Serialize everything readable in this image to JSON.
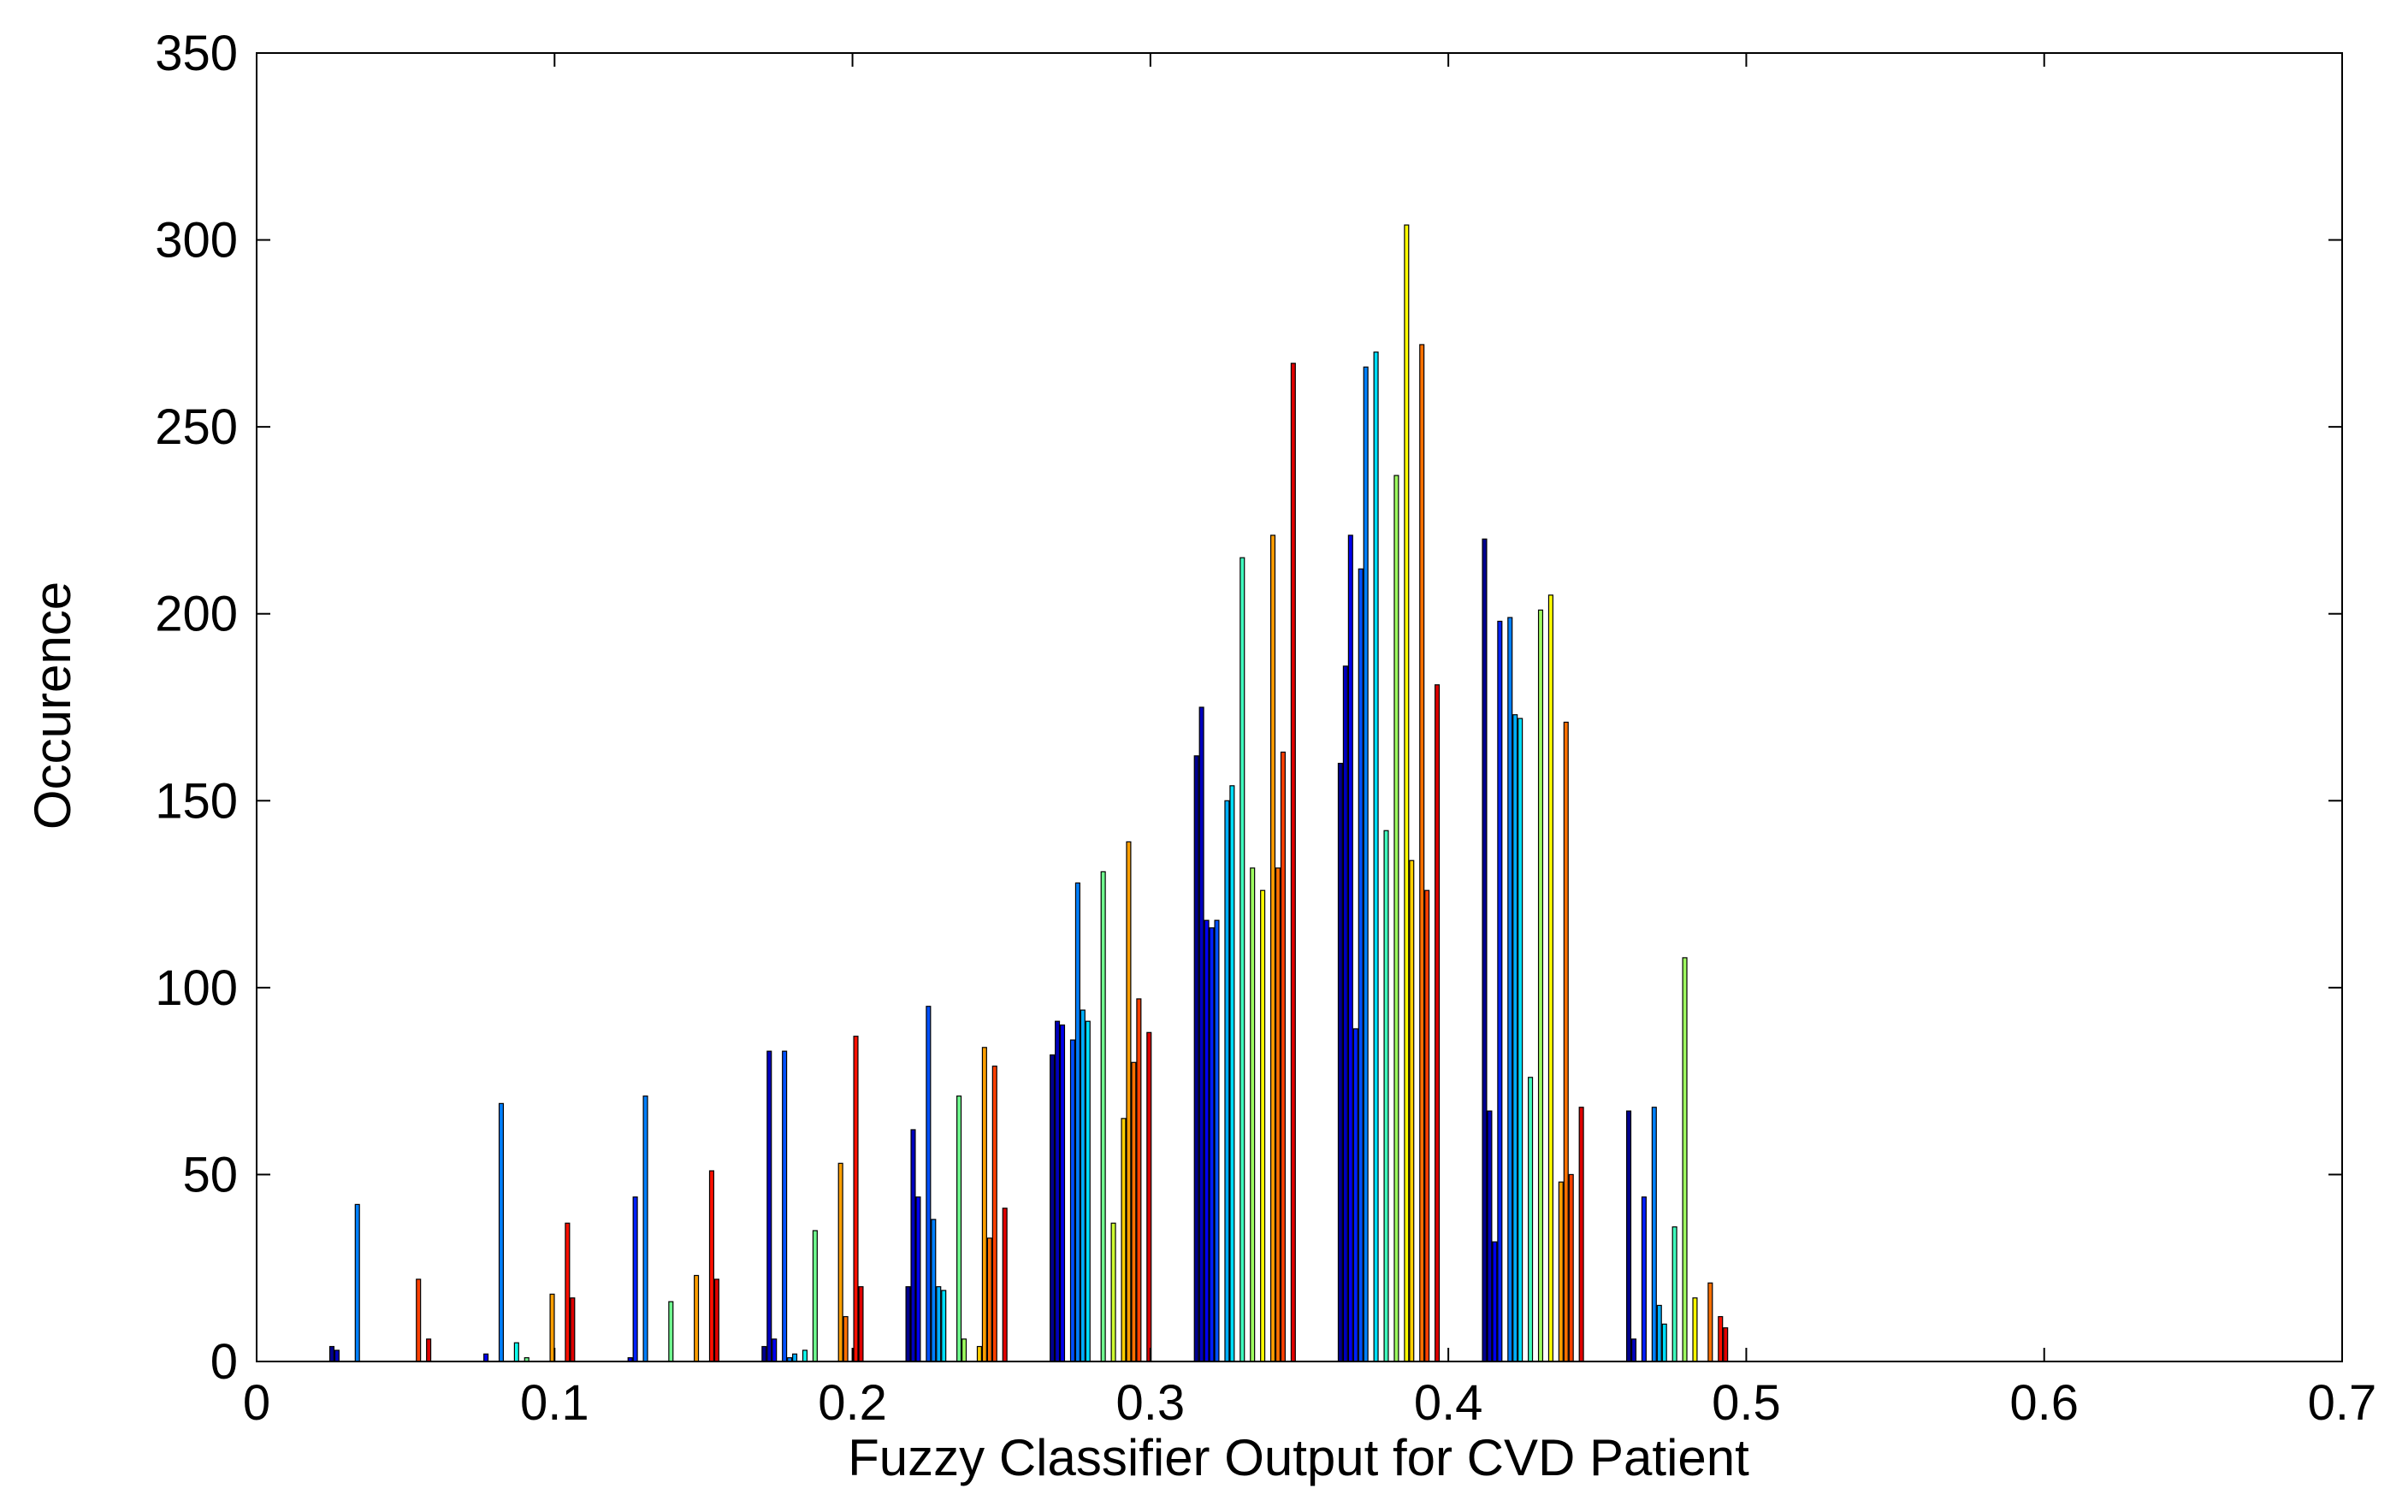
{
  "chart_data": {
    "type": "bar",
    "title": "",
    "xlabel": "Fuzzy Classifier Output for CVD Patient",
    "ylabel": "Occurence",
    "xlim": [
      0,
      0.7
    ],
    "ylim": [
      0,
      350
    ],
    "xticks": [
      0,
      0.1,
      0.2,
      0.3,
      0.4,
      0.5,
      0.6,
      0.7
    ],
    "yticks": [
      0,
      50,
      100,
      150,
      200,
      250,
      300,
      350
    ],
    "xtick_labels": [
      "0",
      "0.1",
      "0.2",
      "0.3",
      "0.4",
      "0.5",
      "0.6",
      "0.7"
    ],
    "ytick_labels": [
      "0",
      "50",
      "100",
      "150",
      "200",
      "250",
      "300",
      "350"
    ],
    "grid": false,
    "legend": "none",
    "colormap": "jet",
    "categories": [
      0.0415,
      0.0898,
      0.1382,
      0.1866,
      0.2349,
      0.2833,
      0.3317,
      0.38,
      0.4284,
      0.4768
    ],
    "series": [
      {
        "color": "#00008f",
        "values": [
          4,
          0,
          0,
          4,
          20,
          82,
          162,
          160,
          220,
          67
        ]
      },
      {
        "color": "#0000bf",
        "values": [
          3,
          0,
          0,
          83,
          62,
          91,
          175,
          186,
          67,
          6
        ]
      },
      {
        "color": "#0000ef",
        "values": [
          0,
          2,
          1,
          6,
          44,
          90,
          118,
          221,
          32,
          0
        ]
      },
      {
        "color": "#0020ff",
        "values": [
          0,
          0,
          44,
          0,
          0,
          0,
          116,
          89,
          198,
          44
        ]
      },
      {
        "color": "#0050ff",
        "values": [
          0,
          0,
          0,
          83,
          95,
          86,
          118,
          212,
          0,
          0
        ]
      },
      {
        "color": "#0080ff",
        "values": [
          42,
          69,
          71,
          1,
          38,
          128,
          0,
          266,
          199,
          68
        ]
      },
      {
        "color": "#00afff",
        "values": [
          0,
          0,
          0,
          2,
          20,
          94,
          150,
          0,
          173,
          15
        ]
      },
      {
        "color": "#00dfff",
        "values": [
          0,
          0,
          0,
          0,
          19,
          91,
          154,
          270,
          172,
          10
        ]
      },
      {
        "color": "#10ffef",
        "values": [
          0,
          5,
          0,
          3,
          0,
          0,
          0,
          0,
          0,
          0
        ]
      },
      {
        "color": "#40ffbf",
        "values": [
          0,
          0,
          0,
          0,
          0,
          0,
          215,
          142,
          76,
          36
        ]
      },
      {
        "color": "#70ff8f",
        "values": [
          0,
          1,
          16,
          35,
          71,
          131,
          0,
          0,
          0,
          0
        ]
      },
      {
        "color": "#9fff60",
        "values": [
          0,
          0,
          0,
          0,
          6,
          0,
          132,
          237,
          201,
          108
        ]
      },
      {
        "color": "#cfff30",
        "values": [
          0,
          0,
          0,
          0,
          0,
          37,
          0,
          0,
          0,
          0
        ]
      },
      {
        "color": "#ffff00",
        "values": [
          0,
          0,
          0,
          0,
          0,
          0,
          126,
          304,
          205,
          17
        ]
      },
      {
        "color": "#ffcf00",
        "values": [
          0,
          0,
          0,
          0,
          4,
          65,
          0,
          134,
          0,
          0
        ]
      },
      {
        "color": "#ff9f00",
        "values": [
          0,
          18,
          23,
          53,
          84,
          139,
          221,
          0,
          48,
          0
        ]
      },
      {
        "color": "#ff7000",
        "values": [
          0,
          0,
          0,
          12,
          33,
          80,
          132,
          272,
          171,
          21
        ]
      },
      {
        "color": "#ff4000",
        "values": [
          22,
          0,
          0,
          0,
          79,
          97,
          163,
          126,
          50,
          0
        ]
      },
      {
        "color": "#ff1000",
        "values": [
          0,
          37,
          51,
          87,
          0,
          0,
          0,
          0,
          0,
          12
        ]
      },
      {
        "color": "#df0000",
        "values": [
          6,
          17,
          22,
          20,
          41,
          88,
          267,
          181,
          68,
          9
        ]
      }
    ]
  }
}
